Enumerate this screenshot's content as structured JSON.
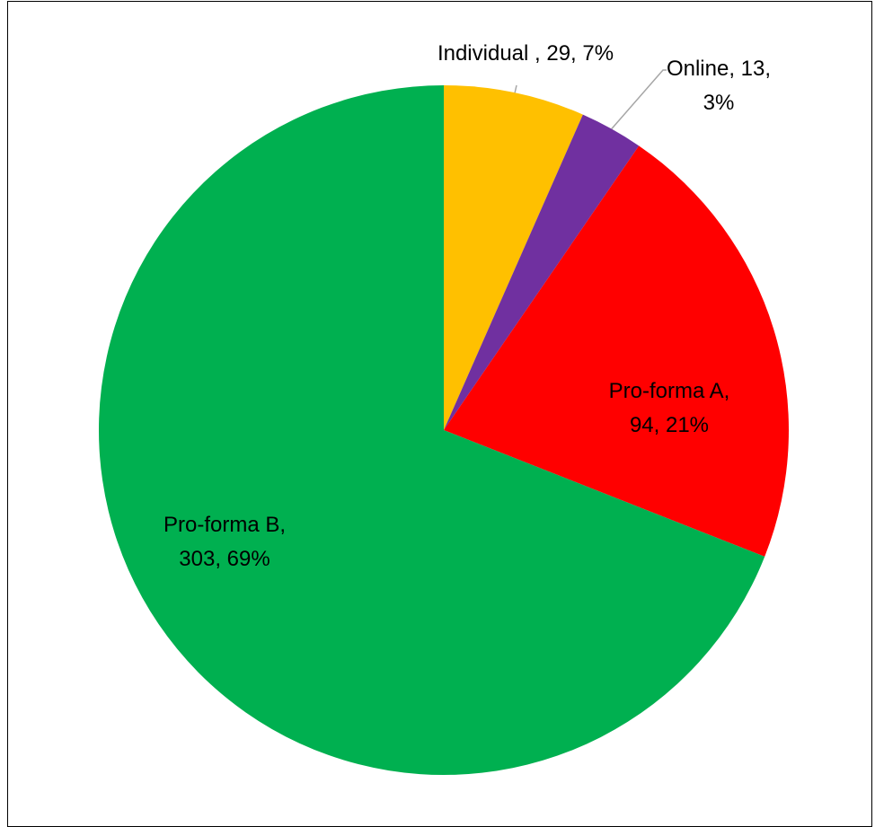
{
  "chart_data": {
    "type": "pie",
    "title": "",
    "slices": [
      {
        "name": "Individual",
        "value": 29,
        "percent": 7,
        "color": "#FFC000",
        "label_line1": "Individual , 29, 7%",
        "label_line2": ""
      },
      {
        "name": "Online",
        "value": 13,
        "percent": 3,
        "color": "#7030A0",
        "label_line1": "Online, 13,",
        "label_line2": "3%"
      },
      {
        "name": "Pro-forma A",
        "value": 94,
        "percent": 21,
        "color": "#FF0000",
        "label_line1": "Pro-forma A,",
        "label_line2": "94, 21%"
      },
      {
        "name": "Pro-forma B",
        "value": 303,
        "percent": 69,
        "color": "#00B050",
        "label_line1": "Pro-forma B,",
        "label_line2": "303, 69%"
      }
    ],
    "start_angle_deg": 0,
    "direction": "clockwise",
    "legend": "none",
    "leader_line_color": "#A6A6A6"
  }
}
